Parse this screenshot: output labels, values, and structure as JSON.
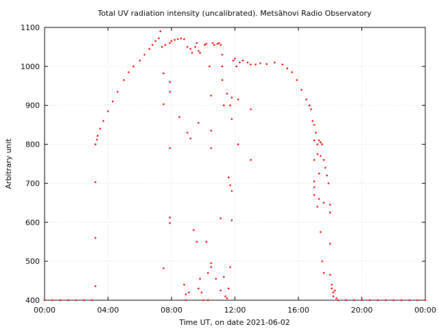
{
  "chart_data": {
    "type": "scatter",
    "title": "Total UV radiation intensity (uncalibrated). Metsähovi Radio Observatory",
    "xlabel": "Time UT, on date 2021-06-02",
    "ylabel": "Arbitrary unit",
    "x_ticks": [
      "00:00",
      "04:00",
      "08:00",
      "12:00",
      "16:00",
      "20:00",
      "00:00"
    ],
    "x_tick_hours": [
      0,
      4,
      8,
      12,
      16,
      20,
      24
    ],
    "y_ticks": [
      400,
      500,
      600,
      700,
      800,
      900,
      1000,
      1100
    ],
    "xlim_hours": [
      0,
      24
    ],
    "ylim": [
      400,
      1100
    ],
    "grid": true,
    "marker_color": "#ff0000",
    "series": [
      {
        "points": [
          [
            0.0,
            400
          ],
          [
            0.5,
            400
          ],
          [
            1.0,
            400
          ],
          [
            1.5,
            400
          ],
          [
            2.0,
            400
          ],
          [
            2.5,
            400
          ],
          [
            3.0,
            400
          ],
          [
            3.2,
            436
          ],
          [
            3.2,
            560
          ],
          [
            3.2,
            703
          ],
          [
            3.2,
            800
          ],
          [
            3.3,
            812
          ],
          [
            3.35,
            822
          ],
          [
            3.5,
            840
          ],
          [
            3.7,
            860
          ],
          [
            4.0,
            885
          ],
          [
            4.3,
            910
          ],
          [
            4.6,
            935
          ],
          [
            5.0,
            965
          ],
          [
            5.3,
            985
          ],
          [
            5.6,
            1000
          ],
          [
            6.0,
            1015
          ],
          [
            6.3,
            1030
          ],
          [
            6.6,
            1045
          ],
          [
            6.8,
            1055
          ],
          [
            7.0,
            1065
          ],
          [
            7.2,
            1072
          ],
          [
            7.3,
            1090
          ],
          [
            7.4,
            1050
          ],
          [
            7.5,
            982
          ],
          [
            7.5,
            903
          ],
          [
            7.5,
            482
          ],
          [
            7.6,
            1055
          ],
          [
            7.9,
            1060
          ],
          [
            7.9,
            960
          ],
          [
            7.9,
            935
          ],
          [
            7.9,
            790
          ],
          [
            7.9,
            612
          ],
          [
            7.9,
            598
          ],
          [
            8.0,
            1065
          ],
          [
            8.2,
            1068
          ],
          [
            8.4,
            1070
          ],
          [
            8.5,
            870
          ],
          [
            8.6,
            1072
          ],
          [
            8.8,
            1070
          ],
          [
            8.8,
            440
          ],
          [
            8.9,
            415
          ],
          [
            8.9,
            400
          ],
          [
            9.0,
            1050
          ],
          [
            9.0,
            830
          ],
          [
            9.1,
            420
          ],
          [
            9.2,
            815
          ],
          [
            9.2,
            1045
          ],
          [
            9.3,
            1035
          ],
          [
            9.4,
            580
          ],
          [
            9.5,
            1050
          ],
          [
            9.6,
            1060
          ],
          [
            9.6,
            550
          ],
          [
            9.7,
            1040
          ],
          [
            9.7,
            855
          ],
          [
            9.7,
            430
          ],
          [
            9.8,
            1035
          ],
          [
            9.8,
            455
          ],
          [
            9.9,
            420
          ],
          [
            10.0,
            400
          ],
          [
            10.1,
            1055
          ],
          [
            10.2,
            1058
          ],
          [
            10.2,
            550
          ],
          [
            10.3,
            470
          ],
          [
            10.3,
            400
          ],
          [
            10.4,
            1000
          ],
          [
            10.5,
            925
          ],
          [
            10.5,
            835
          ],
          [
            10.5,
            790
          ],
          [
            10.5,
            495
          ],
          [
            10.5,
            485
          ],
          [
            10.6,
            1060
          ],
          [
            10.7,
            1055
          ],
          [
            10.8,
            455
          ],
          [
            10.9,
            1058
          ],
          [
            11.0,
            1060
          ],
          [
            11.1,
            1055
          ],
          [
            11.1,
            610
          ],
          [
            11.1,
            425
          ],
          [
            11.2,
            1030
          ],
          [
            11.2,
            1000
          ],
          [
            11.2,
            965
          ],
          [
            11.3,
            900
          ],
          [
            11.3,
            460
          ],
          [
            11.4,
            410
          ],
          [
            11.5,
            405
          ],
          [
            11.5,
            930
          ],
          [
            11.6,
            715
          ],
          [
            11.6,
            430
          ],
          [
            11.7,
            900
          ],
          [
            11.7,
            695
          ],
          [
            11.7,
            485
          ],
          [
            11.8,
            920
          ],
          [
            11.8,
            865
          ],
          [
            11.8,
            680
          ],
          [
            11.8,
            605
          ],
          [
            11.9,
            1015
          ],
          [
            12.0,
            1020
          ],
          [
            12.1,
            1000
          ],
          [
            12.2,
            800
          ],
          [
            12.2,
            915
          ],
          [
            12.3,
            1010
          ],
          [
            12.5,
            1015
          ],
          [
            12.8,
            1010
          ],
          [
            13.0,
            1005
          ],
          [
            13.0,
            890
          ],
          [
            13.0,
            760
          ],
          [
            13.3,
            1005
          ],
          [
            13.6,
            1008
          ],
          [
            14.0,
            1006
          ],
          [
            14.5,
            1010
          ],
          [
            15.0,
            1005
          ],
          [
            15.3,
            995
          ],
          [
            15.6,
            985
          ],
          [
            15.9,
            965
          ],
          [
            16.2,
            940
          ],
          [
            16.5,
            915
          ],
          [
            16.7,
            900
          ],
          [
            16.8,
            890
          ],
          [
            16.9,
            860
          ],
          [
            17.0,
            850
          ],
          [
            17.0,
            810
          ],
          [
            17.0,
            760
          ],
          [
            17.0,
            705
          ],
          [
            17.0,
            690
          ],
          [
            17.0,
            670
          ],
          [
            17.1,
            830
          ],
          [
            17.2,
            800
          ],
          [
            17.2,
            775
          ],
          [
            17.2,
            640
          ],
          [
            17.3,
            810
          ],
          [
            17.3,
            725
          ],
          [
            17.3,
            660
          ],
          [
            17.4,
            805
          ],
          [
            17.4,
            770
          ],
          [
            17.4,
            575
          ],
          [
            17.5,
            800
          ],
          [
            17.5,
            500
          ],
          [
            17.6,
            760
          ],
          [
            17.6,
            470
          ],
          [
            17.6,
            650
          ],
          [
            17.7,
            740
          ],
          [
            17.8,
            720
          ],
          [
            17.9,
            700
          ],
          [
            18.0,
            645
          ],
          [
            18.0,
            625
          ],
          [
            18.0,
            545
          ],
          [
            18.0,
            465
          ],
          [
            18.1,
            440
          ],
          [
            18.1,
            430
          ],
          [
            18.2,
            420
          ],
          [
            18.2,
            410
          ],
          [
            18.3,
            425
          ],
          [
            18.4,
            405
          ],
          [
            18.5,
            400
          ],
          [
            19.0,
            400
          ],
          [
            19.5,
            400
          ],
          [
            20.0,
            400
          ],
          [
            20.5,
            400
          ],
          [
            21.0,
            400
          ],
          [
            21.5,
            400
          ],
          [
            22.0,
            400
          ],
          [
            22.5,
            400
          ],
          [
            23.0,
            400
          ],
          [
            23.5,
            400
          ],
          [
            24.0,
            400
          ]
        ]
      }
    ]
  }
}
